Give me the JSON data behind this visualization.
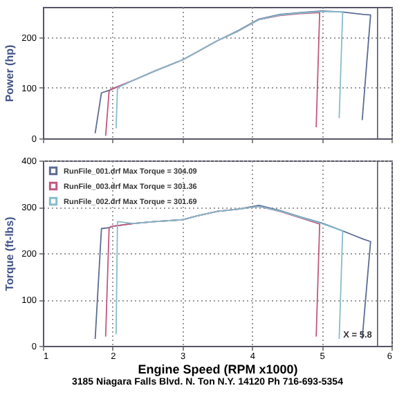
{
  "chart_data": [
    {
      "type": "line",
      "ylabel": "Power (hp)",
      "xlim": [
        1,
        6
      ],
      "xticks": [
        1,
        2,
        3,
        4,
        5,
        6
      ],
      "ylim": [
        0,
        260
      ],
      "yticks": [
        0,
        100,
        200
      ],
      "grid": true,
      "tick_labels": "y",
      "marker": "none",
      "ref_lines": [
        {
          "axis": "x",
          "value": 5.8
        }
      ],
      "series": [
        {
          "color": "#5b6b94",
          "x": [
            1.75,
            1.84,
            1.95,
            2.0,
            2.3,
            2.6,
            3.0,
            3.2,
            3.5,
            3.8,
            4.1,
            4.4,
            4.7,
            5.0,
            5.3,
            5.6,
            5.7,
            5.58
          ],
          "values": [
            10,
            90,
            95,
            98,
            115,
            133,
            155,
            170,
            193,
            213,
            236,
            245,
            249,
            252,
            250,
            245,
            244,
            36
          ]
        },
        {
          "color": "#c4577f",
          "x": [
            1.9,
            1.95,
            2.0,
            2.3,
            2.6,
            3.0,
            3.2,
            3.5,
            3.8,
            4.1,
            4.4,
            4.7,
            4.97,
            4.92
          ],
          "values": [
            5,
            94,
            98,
            115,
            133,
            155,
            170,
            193,
            212,
            235,
            243,
            247,
            249,
            22
          ]
        },
        {
          "color": "#86bccb",
          "x": [
            2.05,
            2.07,
            2.3,
            2.6,
            3.0,
            3.2,
            3.5,
            3.8,
            4.1,
            4.4,
            4.7,
            5.0,
            5.3,
            5.25
          ],
          "values": [
            20,
            100,
            115,
            133,
            155,
            170,
            193,
            212,
            235,
            244,
            248,
            251,
            250,
            40
          ]
        }
      ]
    },
    {
      "type": "line",
      "xlabel": "Engine Speed (RPM x1000)",
      "ylabel": "Torque (ft-lbs)",
      "xlim": [
        1,
        6
      ],
      "xticks": [
        1,
        2,
        3,
        4,
        5,
        6
      ],
      "ylim": [
        0,
        400
      ],
      "yticks": [
        0,
        100,
        200,
        300,
        400
      ],
      "grid": true,
      "legend": "top left",
      "marker": "none",
      "ref_lines": [
        {
          "axis": "x",
          "value": 5.8,
          "label": "X = 5.8"
        }
      ],
      "annotations": [
        "3185 Niagara Falls Blvd. N. Ton N.Y. 14120 Ph 716-693-5354"
      ],
      "series": [
        {
          "name": "RunFile_001.drf Max Torque = 304.09",
          "color": "#5b6b94",
          "x": [
            1.75,
            1.84,
            1.95,
            2.0,
            2.3,
            2.6,
            3.0,
            3.2,
            3.5,
            3.8,
            4.1,
            4.4,
            4.7,
            5.0,
            5.3,
            5.6,
            5.7,
            5.58
          ],
          "values": [
            15,
            253,
            255,
            258,
            264,
            268,
            272,
            280,
            290,
            295,
            303,
            292,
            278,
            265,
            248,
            230,
            225,
            15
          ]
        },
        {
          "name": "RunFile_003.drf Max Torque = 301.36",
          "color": "#c4577f",
          "x": [
            1.9,
            1.95,
            2.0,
            2.3,
            2.6,
            3.0,
            3.2,
            3.5,
            3.8,
            4.1,
            4.4,
            4.7,
            4.97,
            4.92
          ],
          "values": [
            20,
            255,
            258,
            264,
            268,
            272,
            280,
            290,
            295,
            301,
            290,
            276,
            263,
            20
          ]
        },
        {
          "name": "RunFile_002.drf Max Torque = 301.69",
          "color": "#86bccb",
          "x": [
            2.05,
            2.07,
            2.3,
            2.6,
            3.0,
            3.2,
            3.5,
            3.8,
            4.1,
            4.4,
            4.7,
            5.0,
            5.3,
            5.25
          ],
          "values": [
            25,
            268,
            264,
            268,
            272,
            280,
            290,
            295,
            301,
            291,
            277,
            264,
            248,
            15
          ]
        }
      ]
    }
  ]
}
